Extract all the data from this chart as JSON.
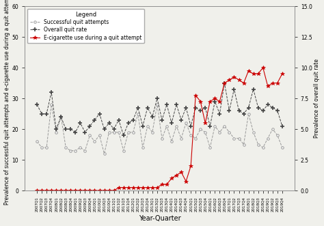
{
  "xlabel": "Year-Quarter",
  "ylabel_left": "Prevalence of successful quit attempts and e-cigarette use during a quit attempt",
  "ylabel_right": "Prevalence of overall quit rate",
  "ylim_left": [
    0,
    60
  ],
  "ylim_right": [
    0,
    15
  ],
  "yticks_left": [
    0,
    10,
    20,
    30,
    40,
    50,
    60
  ],
  "yticks_right": [
    0,
    2.5,
    5,
    7.5,
    10,
    12.5,
    15
  ],
  "background_color": "#f0f0eb",
  "quarters": [
    "2007Q1",
    "2007Q2",
    "2007Q3",
    "2007Q4",
    "2008Q1",
    "2008Q2",
    "2008Q3",
    "2008Q4",
    "2009Q1",
    "2009Q2",
    "2009Q3",
    "2009Q4",
    "2010Q1",
    "2010Q2",
    "2010Q3",
    "2010Q4",
    "2011Q1",
    "2011Q2",
    "2011Q3",
    "2011Q4",
    "2012Q1",
    "2012Q2",
    "2012Q3",
    "2012Q4",
    "2013Q1",
    "2013Q2",
    "2013Q3",
    "2013Q4",
    "2014Q1",
    "2014Q2",
    "2014Q3",
    "2014Q4",
    "2015Q1",
    "2015Q2",
    "2015Q3",
    "2015Q4",
    "2016Q1",
    "2016Q2",
    "2016Q3",
    "2016Q4",
    "2017Q1",
    "2017Q2",
    "2017Q3",
    "2017Q4",
    "2018Q1",
    "2018Q2",
    "2018Q3",
    "2018Q4",
    "2019Q1",
    "2019Q2",
    "2019Q3",
    "2019Q4"
  ],
  "successful_quit": [
    16,
    14,
    14,
    28,
    19,
    24,
    14,
    13,
    13,
    14,
    13,
    18,
    16,
    18,
    12,
    19,
    19,
    19,
    13,
    19,
    19,
    25,
    14,
    21,
    19,
    28,
    17,
    21,
    16,
    21,
    17,
    22,
    18,
    17,
    20,
    19,
    14,
    21,
    19,
    21,
    19,
    17,
    17,
    15,
    25,
    19,
    15,
    14,
    17,
    20,
    18,
    14
  ],
  "overall_quit": [
    28,
    25,
    25,
    32,
    20,
    24,
    20,
    20,
    19,
    22,
    19,
    21,
    23,
    25,
    20,
    22,
    20,
    23,
    18,
    22,
    23,
    27,
    21,
    27,
    24,
    30,
    23,
    28,
    22,
    28,
    23,
    27,
    21,
    27,
    26,
    27,
    21,
    29,
    25,
    35,
    26,
    33,
    26,
    25,
    27,
    33,
    27,
    26,
    28,
    27,
    26,
    21
  ],
  "ecig": [
    0,
    0,
    0,
    0,
    0,
    0,
    0,
    0,
    0,
    0,
    0,
    0,
    0,
    0,
    0,
    0,
    0,
    1,
    1,
    1,
    1,
    1,
    1,
    1,
    1,
    1,
    2,
    2,
    4,
    5,
    6,
    3,
    8,
    31,
    29,
    22,
    29,
    30,
    29,
    35,
    36,
    37,
    36,
    35,
    39,
    38,
    38,
    40,
    34,
    35,
    35,
    38
  ],
  "line_successful_color": "#999999",
  "line_overall_color": "#444444",
  "line_ecig_color": "#cc0000",
  "legend_title": "Legend",
  "legend_fontsize": 5.5,
  "axis_fontsize": 5.5,
  "xlabel_fontsize": 7,
  "tick_fontsize": 5.5,
  "xtick_fontsize": 4.0
}
